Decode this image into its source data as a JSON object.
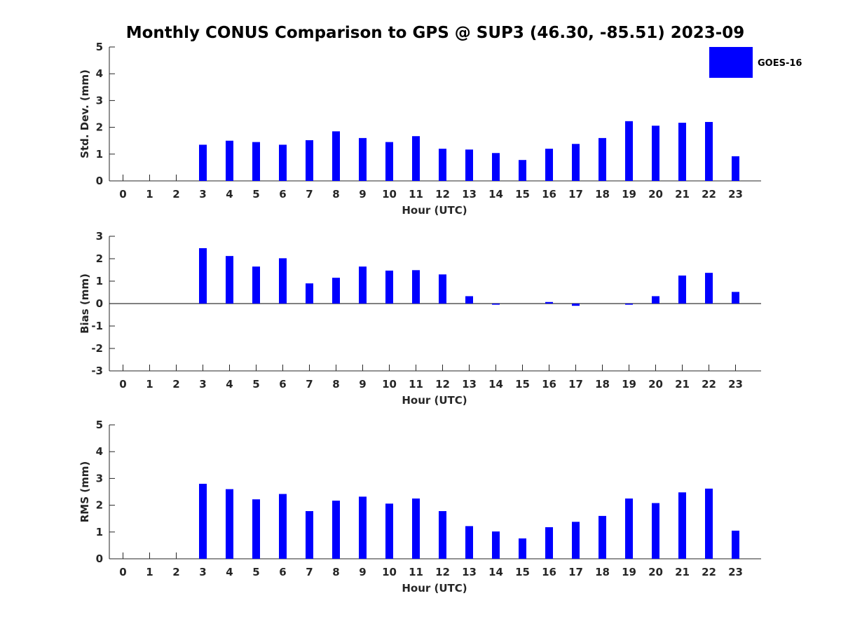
{
  "title": "Monthly CONUS Comparison to GPS @ SUP3 (46.30, -85.51) 2023-09",
  "legend": {
    "label": "GOES-16",
    "color": "#0000ff"
  },
  "colors": {
    "bar": "#0000ff",
    "axis": "#262626",
    "zero_line": "#000000"
  },
  "chart_data": [
    {
      "type": "bar",
      "ylabel": "Std. Dev. (mm)",
      "xlabel": "Hour (UTC)",
      "ylim": [
        0,
        5
      ],
      "yticks": [
        0,
        1,
        2,
        3,
        4,
        5
      ],
      "categories": [
        0,
        1,
        2,
        3,
        4,
        5,
        6,
        7,
        8,
        9,
        10,
        11,
        12,
        13,
        14,
        15,
        16,
        17,
        18,
        19,
        20,
        21,
        22,
        23
      ],
      "series": [
        {
          "name": "GOES-16",
          "values": [
            null,
            null,
            null,
            1.35,
            1.5,
            1.45,
            1.35,
            1.52,
            1.85,
            1.6,
            1.45,
            1.67,
            1.2,
            1.17,
            1.04,
            0.78,
            1.2,
            1.38,
            1.6,
            2.23,
            2.06,
            2.17,
            2.2,
            0.92
          ]
        }
      ]
    },
    {
      "type": "bar",
      "ylabel": "Bias (mm)",
      "xlabel": "Hour (UTC)",
      "ylim": [
        -3,
        3
      ],
      "yticks": [
        -3,
        -2,
        -1,
        0,
        1,
        2,
        3
      ],
      "categories": [
        0,
        1,
        2,
        3,
        4,
        5,
        6,
        7,
        8,
        9,
        10,
        11,
        12,
        13,
        14,
        15,
        16,
        17,
        18,
        19,
        20,
        21,
        22,
        23
      ],
      "series": [
        {
          "name": "GOES-16",
          "values": [
            null,
            null,
            null,
            2.47,
            2.12,
            1.65,
            2.02,
            0.9,
            1.15,
            1.65,
            1.47,
            1.49,
            1.3,
            0.33,
            -0.05,
            0.0,
            0.07,
            -0.1,
            0.0,
            -0.05,
            0.33,
            1.25,
            1.37,
            0.52
          ]
        }
      ]
    },
    {
      "type": "bar",
      "ylabel": "RMS (mm)",
      "xlabel": "Hour (UTC)",
      "ylim": [
        0,
        5
      ],
      "yticks": [
        0,
        1,
        2,
        3,
        4,
        5
      ],
      "categories": [
        0,
        1,
        2,
        3,
        4,
        5,
        6,
        7,
        8,
        9,
        10,
        11,
        12,
        13,
        14,
        15,
        16,
        17,
        18,
        19,
        20,
        21,
        22,
        23
      ],
      "series": [
        {
          "name": "GOES-16",
          "values": [
            null,
            null,
            null,
            2.8,
            2.6,
            2.22,
            2.42,
            1.78,
            2.17,
            2.32,
            2.06,
            2.25,
            1.78,
            1.22,
            1.02,
            0.76,
            1.18,
            1.38,
            1.6,
            2.25,
            2.08,
            2.48,
            2.62,
            1.05
          ]
        }
      ]
    }
  ]
}
